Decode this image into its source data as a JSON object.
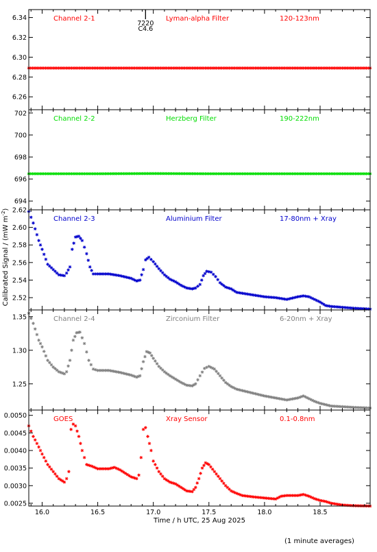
{
  "figure": {
    "xlabel": "Time / h UTC, 25 Aug 2025",
    "ylabel": "Calibrated Signal / (mW m",
    "ylabel_sup": "-2",
    "ylabel_close": ")",
    "footnote": "(1 minute averages)",
    "xlim": [
      15.88,
      18.95
    ],
    "xticks": [
      16.0,
      16.5,
      17.0,
      17.5,
      18.0,
      18.5
    ],
    "xticklabels": [
      "16.0",
      "16.5",
      "17.0",
      "17.5",
      "18.0",
      "18.5"
    ]
  },
  "chart_data": [
    {
      "type": "scatter",
      "channel": "Channel 2-1",
      "filter": "Lyman-alpha Filter",
      "band": "120-123nm",
      "color": "#ff0000",
      "ylim": [
        6.247,
        6.348
      ],
      "yticks": [
        6.26,
        6.28,
        6.3,
        6.32,
        6.34
      ],
      "yticklabels": [
        "6.26",
        "6.28",
        "6.30",
        "6.32",
        "6.34"
      ],
      "marker": {
        "x": 16.93,
        "label_top": "7220",
        "label_bottom": "C4.6"
      },
      "points": [
        [
          15.88,
          6.289
        ],
        [
          16.5,
          6.289
        ],
        [
          17.0,
          6.289
        ],
        [
          17.5,
          6.289
        ],
        [
          18.0,
          6.289
        ],
        [
          18.5,
          6.289
        ],
        [
          18.95,
          6.289
        ]
      ]
    },
    {
      "type": "scatter",
      "channel": "Channel 2-2",
      "filter": "Herzberg Filter",
      "band": "190-222nm",
      "color": "#00dd00",
      "ylim": [
        693.2,
        702.3
      ],
      "yticks": [
        694,
        696,
        698,
        700,
        702
      ],
      "yticklabels": [
        "694",
        "696",
        "698",
        "700",
        "702"
      ],
      "points": [
        [
          15.88,
          696.48
        ],
        [
          16.5,
          696.48
        ],
        [
          17.0,
          696.5
        ],
        [
          17.5,
          696.48
        ],
        [
          18.0,
          696.48
        ],
        [
          18.5,
          696.48
        ],
        [
          18.95,
          696.48
        ]
      ]
    },
    {
      "type": "scatter",
      "channel": "Channel 2-3",
      "filter": "Aluminium Filter",
      "band": "17-80nm + Xray",
      "color": "#0000cc",
      "ylim": [
        2.506,
        2.62
      ],
      "yticks": [
        2.52,
        2.54,
        2.56,
        2.58,
        2.6,
        2.62
      ],
      "yticklabels": [
        "2.52",
        "2.54",
        "2.56",
        "2.58",
        "2.60",
        "2.62"
      ],
      "points": [
        [
          15.88,
          2.618
        ],
        [
          15.92,
          2.605
        ],
        [
          15.97,
          2.585
        ],
        [
          16.0,
          2.575
        ],
        [
          16.05,
          2.558
        ],
        [
          16.1,
          2.552
        ],
        [
          16.15,
          2.546
        ],
        [
          16.2,
          2.545
        ],
        [
          16.22,
          2.548
        ],
        [
          16.25,
          2.555
        ],
        [
          16.27,
          2.575
        ],
        [
          16.3,
          2.589
        ],
        [
          16.33,
          2.59
        ],
        [
          16.36,
          2.585
        ],
        [
          16.4,
          2.57
        ],
        [
          16.43,
          2.555
        ],
        [
          16.46,
          2.547
        ],
        [
          16.5,
          2.547
        ],
        [
          16.6,
          2.547
        ],
        [
          16.7,
          2.545
        ],
        [
          16.8,
          2.542
        ],
        [
          16.85,
          2.539
        ],
        [
          16.88,
          2.54
        ],
        [
          16.91,
          2.552
        ],
        [
          16.93,
          2.563
        ],
        [
          16.96,
          2.566
        ],
        [
          17.0,
          2.561
        ],
        [
          17.05,
          2.553
        ],
        [
          17.1,
          2.546
        ],
        [
          17.15,
          2.541
        ],
        [
          17.2,
          2.538
        ],
        [
          17.25,
          2.534
        ],
        [
          17.3,
          2.531
        ],
        [
          17.35,
          2.53
        ],
        [
          17.38,
          2.531
        ],
        [
          17.42,
          2.535
        ],
        [
          17.45,
          2.545
        ],
        [
          17.48,
          2.55
        ],
        [
          17.52,
          2.549
        ],
        [
          17.56,
          2.544
        ],
        [
          17.6,
          2.537
        ],
        [
          17.65,
          2.532
        ],
        [
          17.7,
          2.53
        ],
        [
          17.75,
          2.526
        ],
        [
          17.8,
          2.525
        ],
        [
          17.9,
          2.523
        ],
        [
          18.0,
          2.521
        ],
        [
          18.1,
          2.52
        ],
        [
          18.2,
          2.518
        ],
        [
          18.3,
          2.521
        ],
        [
          18.35,
          2.522
        ],
        [
          18.4,
          2.521
        ],
        [
          18.45,
          2.518
        ],
        [
          18.5,
          2.515
        ],
        [
          18.55,
          2.511
        ],
        [
          18.6,
          2.51
        ],
        [
          18.7,
          2.509
        ],
        [
          18.8,
          2.508
        ],
        [
          18.95,
          2.507
        ]
      ]
    },
    {
      "type": "scatter",
      "channel": "Channel 2-4",
      "filter": "Zirconium Filter",
      "band": "6-20nm + Xray",
      "color": "#808080",
      "ylim": [
        1.211,
        1.36
      ],
      "yticks": [
        1.25,
        1.3,
        1.35
      ],
      "yticklabels": [
        "1.25",
        "1.30",
        "1.35"
      ],
      "points": [
        [
          15.88,
          1.355
        ],
        [
          15.92,
          1.34
        ],
        [
          15.97,
          1.315
        ],
        [
          16.0,
          1.305
        ],
        [
          16.05,
          1.285
        ],
        [
          16.1,
          1.275
        ],
        [
          16.15,
          1.268
        ],
        [
          16.2,
          1.265
        ],
        [
          16.22,
          1.268
        ],
        [
          16.25,
          1.285
        ],
        [
          16.28,
          1.315
        ],
        [
          16.31,
          1.326
        ],
        [
          16.34,
          1.327
        ],
        [
          16.38,
          1.31
        ],
        [
          16.42,
          1.285
        ],
        [
          16.46,
          1.272
        ],
        [
          16.5,
          1.27
        ],
        [
          16.6,
          1.27
        ],
        [
          16.7,
          1.267
        ],
        [
          16.8,
          1.263
        ],
        [
          16.85,
          1.26
        ],
        [
          16.88,
          1.262
        ],
        [
          16.91,
          1.283
        ],
        [
          16.94,
          1.298
        ],
        [
          16.97,
          1.296
        ],
        [
          17.0,
          1.288
        ],
        [
          17.05,
          1.276
        ],
        [
          17.1,
          1.268
        ],
        [
          17.15,
          1.262
        ],
        [
          17.2,
          1.257
        ],
        [
          17.25,
          1.252
        ],
        [
          17.3,
          1.248
        ],
        [
          17.35,
          1.247
        ],
        [
          17.38,
          1.25
        ],
        [
          17.42,
          1.262
        ],
        [
          17.46,
          1.273
        ],
        [
          17.5,
          1.276
        ],
        [
          17.55,
          1.272
        ],
        [
          17.6,
          1.262
        ],
        [
          17.65,
          1.252
        ],
        [
          17.7,
          1.246
        ],
        [
          17.75,
          1.242
        ],
        [
          17.8,
          1.24
        ],
        [
          17.9,
          1.236
        ],
        [
          18.0,
          1.232
        ],
        [
          18.1,
          1.229
        ],
        [
          18.2,
          1.226
        ],
        [
          18.3,
          1.229
        ],
        [
          18.35,
          1.232
        ],
        [
          18.4,
          1.228
        ],
        [
          18.45,
          1.224
        ],
        [
          18.5,
          1.221
        ],
        [
          18.55,
          1.219
        ],
        [
          18.6,
          1.217
        ],
        [
          18.7,
          1.216
        ],
        [
          18.8,
          1.215
        ],
        [
          18.95,
          1.214
        ]
      ]
    },
    {
      "type": "scatter",
      "channel": "GOES",
      "filter": "Xray Sensor",
      "band": "0.1-0.8nm",
      "color": "#ff0000",
      "ylim": [
        0.00242,
        0.00515
      ],
      "yticks": [
        0.0025,
        0.003,
        0.0035,
        0.004,
        0.0045,
        0.005
      ],
      "yticklabels": [
        "0.0025",
        "0.0030",
        "0.0035",
        "0.0040",
        "0.0045",
        "0.0050"
      ],
      "points": [
        [
          15.88,
          0.0047
        ],
        [
          15.92,
          0.0044
        ],
        [
          15.97,
          0.0041
        ],
        [
          16.0,
          0.0039
        ],
        [
          16.05,
          0.0036
        ],
        [
          16.1,
          0.0034
        ],
        [
          16.15,
          0.0032
        ],
        [
          16.2,
          0.0031
        ],
        [
          16.22,
          0.0032
        ],
        [
          16.24,
          0.0034
        ],
        [
          16.26,
          0.0046
        ],
        [
          16.28,
          0.00475
        ],
        [
          16.3,
          0.0047
        ],
        [
          16.33,
          0.0044
        ],
        [
          16.36,
          0.004
        ],
        [
          16.4,
          0.0036
        ],
        [
          16.45,
          0.00355
        ],
        [
          16.5,
          0.00348
        ],
        [
          16.6,
          0.00348
        ],
        [
          16.65,
          0.00352
        ],
        [
          16.7,
          0.00345
        ],
        [
          16.75,
          0.00335
        ],
        [
          16.8,
          0.00325
        ],
        [
          16.85,
          0.0032
        ],
        [
          16.87,
          0.0033
        ],
        [
          16.89,
          0.0038
        ],
        [
          16.91,
          0.0046
        ],
        [
          16.93,
          0.00465
        ],
        [
          16.95,
          0.0044
        ],
        [
          16.98,
          0.004
        ],
        [
          17.0,
          0.0037
        ],
        [
          17.05,
          0.0034
        ],
        [
          17.1,
          0.0032
        ],
        [
          17.15,
          0.0031
        ],
        [
          17.2,
          0.00305
        ],
        [
          17.25,
          0.00295
        ],
        [
          17.3,
          0.00285
        ],
        [
          17.35,
          0.00283
        ],
        [
          17.38,
          0.00295
        ],
        [
          17.41,
          0.0032
        ],
        [
          17.44,
          0.0035
        ],
        [
          17.47,
          0.00365
        ],
        [
          17.5,
          0.0036
        ],
        [
          17.55,
          0.0034
        ],
        [
          17.6,
          0.0032
        ],
        [
          17.65,
          0.003
        ],
        [
          17.7,
          0.00285
        ],
        [
          17.75,
          0.00278
        ],
        [
          17.8,
          0.00272
        ],
        [
          17.9,
          0.00268
        ],
        [
          18.0,
          0.00265
        ],
        [
          18.1,
          0.00262
        ],
        [
          18.15,
          0.0027
        ],
        [
          18.2,
          0.00272
        ],
        [
          18.3,
          0.00272
        ],
        [
          18.35,
          0.00275
        ],
        [
          18.4,
          0.0027
        ],
        [
          18.45,
          0.00263
        ],
        [
          18.5,
          0.00258
        ],
        [
          18.55,
          0.00255
        ],
        [
          18.6,
          0.0025
        ],
        [
          18.7,
          0.00245
        ],
        [
          18.8,
          0.00243
        ],
        [
          18.95,
          0.00242
        ]
      ]
    }
  ]
}
